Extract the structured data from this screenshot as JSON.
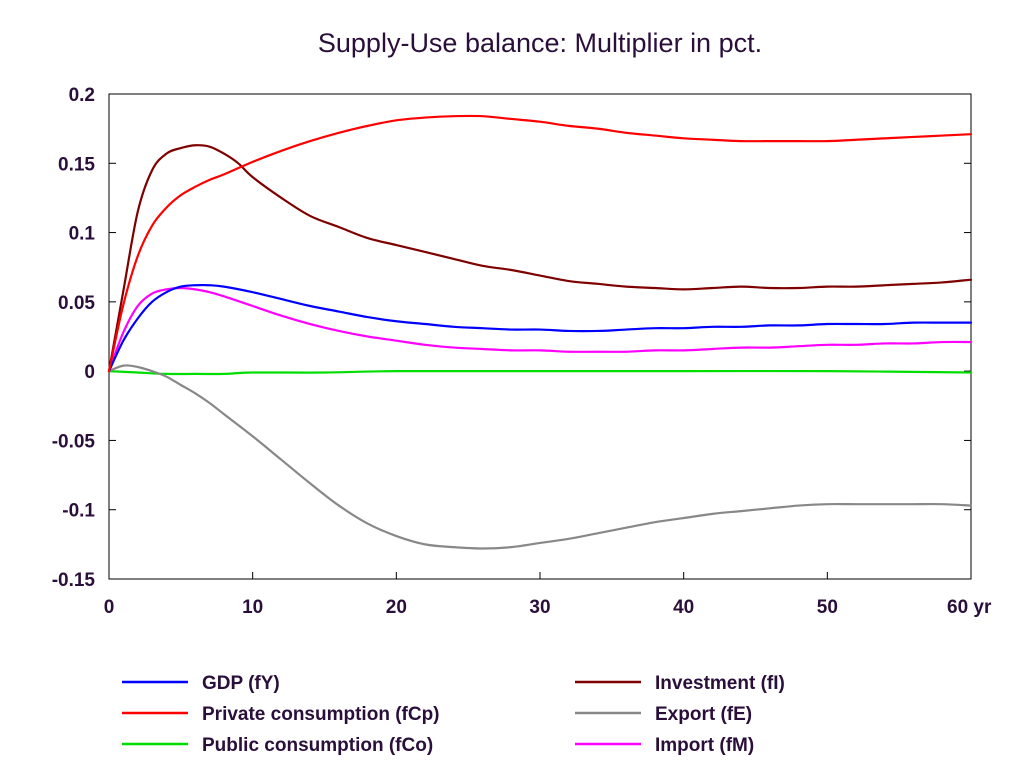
{
  "chart_data": {
    "type": "line",
    "title": "Supply-Use balance: Multiplier in pct.",
    "xlabel": "",
    "ylabel": "",
    "xlim": [
      0,
      60
    ],
    "ylim": [
      -0.15,
      0.2
    ],
    "x_ticks": [
      {
        "value": 0,
        "label": "0"
      },
      {
        "value": 10,
        "label": "10"
      },
      {
        "value": 20,
        "label": "20"
      },
      {
        "value": 30,
        "label": "30"
      },
      {
        "value": 40,
        "label": "40"
      },
      {
        "value": 50,
        "label": "50"
      },
      {
        "value": 60,
        "label": "60 yr"
      }
    ],
    "y_ticks": [
      {
        "value": 0.2,
        "label": "0.2"
      },
      {
        "value": 0.15,
        "label": "0.15"
      },
      {
        "value": 0.1,
        "label": "0.1"
      },
      {
        "value": 0.05,
        "label": "0.05"
      },
      {
        "value": 0,
        "label": "0"
      },
      {
        "value": -0.05,
        "label": "-0.05"
      },
      {
        "value": -0.1,
        "label": "-0.1"
      },
      {
        "value": -0.15,
        "label": "-0.15"
      }
    ],
    "grid": false,
    "legend_position": "bottom",
    "series": [
      {
        "name": "GDP (fY)",
        "color": "#0000ff",
        "x": [
          0,
          1,
          2,
          3,
          4,
          5,
          6,
          7,
          8,
          10,
          12,
          14,
          16,
          18,
          20,
          22,
          24,
          26,
          28,
          30,
          32,
          34,
          36,
          38,
          40,
          42,
          44,
          46,
          48,
          50,
          52,
          54,
          56,
          58,
          60
        ],
        "y": [
          0,
          0.022,
          0.038,
          0.05,
          0.057,
          0.061,
          0.062,
          0.062,
          0.061,
          0.057,
          0.052,
          0.047,
          0.043,
          0.039,
          0.036,
          0.034,
          0.032,
          0.031,
          0.03,
          0.03,
          0.029,
          0.029,
          0.03,
          0.031,
          0.031,
          0.032,
          0.032,
          0.033,
          0.033,
          0.034,
          0.034,
          0.034,
          0.035,
          0.035,
          0.035
        ]
      },
      {
        "name": "Private consumption (fCp)",
        "color": "#ff0000",
        "x": [
          0,
          1,
          2,
          3,
          4,
          5,
          6,
          7,
          8,
          10,
          12,
          14,
          16,
          18,
          20,
          22,
          24,
          26,
          28,
          30,
          32,
          34,
          36,
          38,
          40,
          42,
          44,
          46,
          48,
          50,
          52,
          54,
          56,
          58,
          60
        ],
        "y": [
          0,
          0.048,
          0.083,
          0.105,
          0.118,
          0.127,
          0.133,
          0.138,
          0.142,
          0.151,
          0.159,
          0.166,
          0.172,
          0.177,
          0.181,
          0.183,
          0.184,
          0.184,
          0.182,
          0.18,
          0.177,
          0.175,
          0.172,
          0.17,
          0.168,
          0.167,
          0.166,
          0.166,
          0.166,
          0.166,
          0.167,
          0.168,
          0.169,
          0.17,
          0.171
        ]
      },
      {
        "name": "Public consumption (fCo)",
        "color": "#00dd00",
        "x": [
          0,
          2,
          4,
          6,
          8,
          10,
          15,
          20,
          30,
          40,
          50,
          60
        ],
        "y": [
          0,
          -0.001,
          -0.002,
          -0.002,
          -0.002,
          -0.001,
          -0.001,
          0,
          0,
          0,
          0,
          -0.001
        ]
      },
      {
        "name": "Investment (fI)",
        "color": "#7f0000",
        "x": [
          0,
          1,
          2,
          3,
          4,
          5,
          6,
          7,
          8,
          9,
          10,
          12,
          14,
          16,
          18,
          20,
          22,
          24,
          26,
          28,
          30,
          32,
          34,
          36,
          38,
          40,
          42,
          44,
          46,
          48,
          50,
          52,
          54,
          56,
          58,
          60
        ],
        "y": [
          0,
          0.058,
          0.115,
          0.145,
          0.157,
          0.161,
          0.163,
          0.162,
          0.157,
          0.15,
          0.14,
          0.125,
          0.112,
          0.104,
          0.096,
          0.091,
          0.086,
          0.081,
          0.076,
          0.073,
          0.069,
          0.065,
          0.063,
          0.061,
          0.06,
          0.059,
          0.06,
          0.061,
          0.06,
          0.06,
          0.061,
          0.061,
          0.062,
          0.063,
          0.064,
          0.066
        ]
      },
      {
        "name": "Export (fE)",
        "color": "#888888",
        "x": [
          0,
          1,
          2,
          3,
          4,
          5,
          6,
          7,
          8,
          10,
          12,
          14,
          16,
          18,
          20,
          22,
          24,
          26,
          28,
          30,
          32,
          34,
          36,
          38,
          40,
          42,
          44,
          46,
          48,
          50,
          52,
          54,
          56,
          58,
          60
        ],
        "y": [
          0,
          0.004,
          0.003,
          0,
          -0.004,
          -0.01,
          -0.016,
          -0.023,
          -0.031,
          -0.047,
          -0.064,
          -0.081,
          -0.097,
          -0.11,
          -0.119,
          -0.125,
          -0.127,
          -0.128,
          -0.127,
          -0.124,
          -0.121,
          -0.117,
          -0.113,
          -0.109,
          -0.106,
          -0.103,
          -0.101,
          -0.099,
          -0.097,
          -0.096,
          -0.096,
          -0.096,
          -0.096,
          -0.096,
          -0.097
        ]
      },
      {
        "name": "Import (fM)",
        "color": "#ff00ff",
        "x": [
          0,
          1,
          2,
          3,
          4,
          5,
          6,
          7,
          8,
          10,
          12,
          14,
          16,
          18,
          20,
          22,
          24,
          26,
          28,
          30,
          32,
          34,
          36,
          38,
          40,
          42,
          44,
          46,
          48,
          50,
          52,
          54,
          56,
          58,
          60
        ],
        "y": [
          0,
          0.028,
          0.047,
          0.056,
          0.059,
          0.06,
          0.059,
          0.057,
          0.054,
          0.047,
          0.04,
          0.034,
          0.029,
          0.025,
          0.022,
          0.019,
          0.017,
          0.016,
          0.015,
          0.015,
          0.014,
          0.014,
          0.014,
          0.015,
          0.015,
          0.016,
          0.017,
          0.017,
          0.018,
          0.019,
          0.019,
          0.02,
          0.02,
          0.021,
          0.021
        ]
      }
    ]
  }
}
